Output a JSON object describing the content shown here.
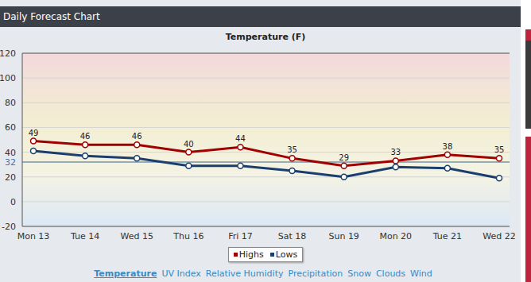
{
  "header": "Daily Forecast Chart",
  "chart_data": {
    "type": "line",
    "title": "Temperature (F)",
    "categories": [
      "Mon 13",
      "Tue 14",
      "Wed 15",
      "Thu 16",
      "Fri 17",
      "Sat 18",
      "Sun 19",
      "Mon 20",
      "Tue 21",
      "Wed 22"
    ],
    "series": [
      {
        "name": "Highs",
        "color": "#a00000",
        "values": [
          49,
          46,
          46,
          40,
          44,
          35,
          29,
          33,
          38,
          35
        ],
        "marker": "circle",
        "data_labels": true
      },
      {
        "name": "Lows",
        "color": "#1a3f6e",
        "values": [
          41,
          37,
          35,
          29,
          29,
          25,
          20,
          28,
          27,
          19
        ],
        "marker": "circle"
      }
    ],
    "ylim": [
      -20,
      120
    ],
    "yticks": [
      -20,
      0,
      20,
      32,
      40,
      60,
      80,
      100,
      120
    ],
    "reference_line": 32,
    "grid": true,
    "legend": "bottom"
  },
  "links": [
    "Temperature",
    "UV Index",
    "Relative Humidity",
    "Precipitation",
    "Snow",
    "Clouds",
    "Wind"
  ]
}
